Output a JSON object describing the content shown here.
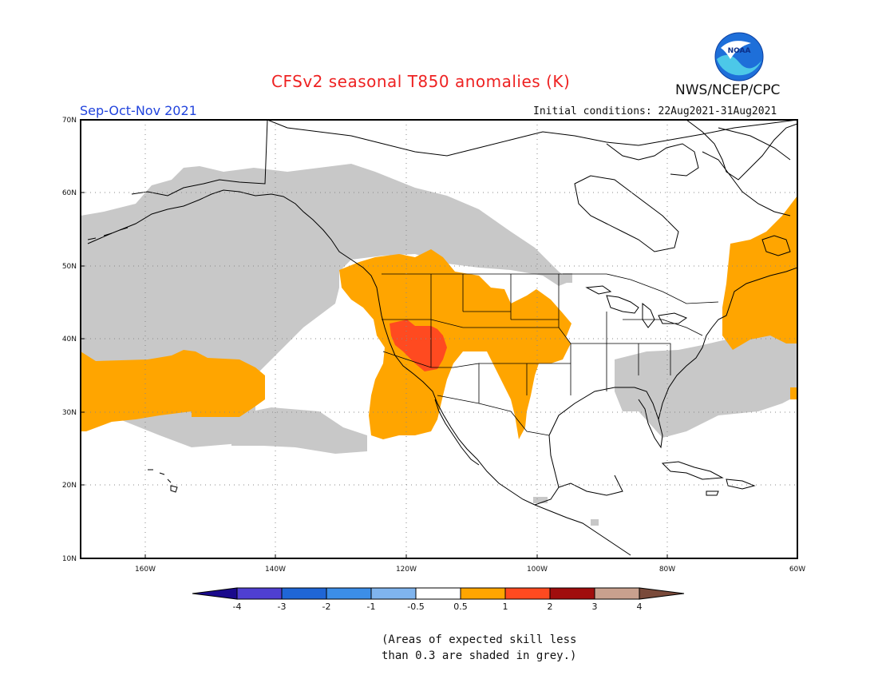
{
  "header": {
    "title": "CFSv2 seasonal T850 anomalies (K)",
    "agency": "NWS/NCEP/CPC",
    "season": "Sep-Oct-Nov 2021",
    "initial_conditions": "Initial conditions: 22Aug2021-31Aug2021",
    "logo_text": "NOAA"
  },
  "map": {
    "lat_labels": [
      "70N",
      "60N",
      "50N",
      "40N",
      "30N",
      "20N",
      "10N"
    ],
    "lon_labels": [
      "160W",
      "140W",
      "120W",
      "100W",
      "80W",
      "60W"
    ],
    "colors": {
      "grey_skill": "#c8c8c8",
      "orange": "#ffa500",
      "red_orange": "#ff4a20",
      "land_outline": "#000000"
    }
  },
  "colorbar": {
    "labels": [
      "-4",
      "-3",
      "-2",
      "-1",
      "-0.5",
      "0.5",
      "1",
      "2",
      "3",
      "4"
    ],
    "colors": [
      "#1a0a8c",
      "#4f3fd1",
      "#1f66d6",
      "#3c8ee8",
      "#7fb4ee",
      "#ffffff",
      "#ffa500",
      "#ff4a20",
      "#a00d0d",
      "#c9a08e",
      "#7a4a3a"
    ]
  },
  "note": {
    "line1": "(Areas of expected skill less",
    "line2": "than 0.3 are shaded in grey.)"
  }
}
